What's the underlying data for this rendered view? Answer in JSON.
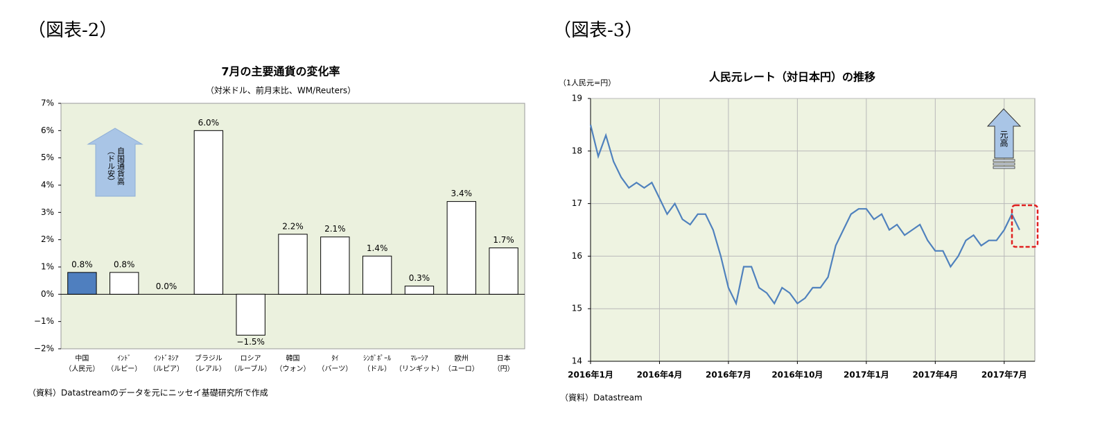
{
  "chart_data": [
    {
      "type": "bar",
      "figure_label": "（図表-2）",
      "title": "7月の主要通貨の変化率",
      "subtitle": "（対米ドル、前月末比、WM/Reuters）",
      "categories": [
        [
          "中国",
          "（人民元）"
        ],
        [
          "ｲﾝﾄﾞ",
          "（ルピー）"
        ],
        [
          "ｲﾝﾄﾞﾈｼｱ",
          "（ルピア）"
        ],
        [
          "ブラジル",
          "（レアル）"
        ],
        [
          "ロシア",
          "（ルーブル）"
        ],
        [
          "韓国",
          "（ウォン）"
        ],
        [
          "ﾀｲ",
          "（バーツ）"
        ],
        [
          "ｼﾝｶﾞﾎﾟｰﾙ",
          "（ドル）"
        ],
        [
          "ﾏﾚｰｼｱ",
          "（リンギット）"
        ],
        [
          "欧州",
          "（ユーロ）"
        ],
        [
          "日本",
          "（円）"
        ]
      ],
      "values": [
        0.8,
        0.8,
        0.0,
        6.0,
        -1.5,
        2.2,
        2.1,
        1.4,
        0.3,
        3.4,
        1.7
      ],
      "value_labels": [
        "0.8%",
        "0.8%",
        "0.0%",
        "6.0%",
        "−1.5%",
        "2.2%",
        "2.1%",
        "1.4%",
        "0.3%",
        "3.4%",
        "1.7%"
      ],
      "colors": [
        "#4f7fbf",
        "#ffffff",
        "#ffffff",
        "#ffffff",
        "#ffffff",
        "#ffffff",
        "#ffffff",
        "#ffffff",
        "#ffffff",
        "#ffffff",
        "#ffffff"
      ],
      "ylim": [
        -2,
        7
      ],
      "yticks": [
        {
          "value": -2,
          "label": "−2%"
        },
        {
          "value": -1,
          "label": "−1%"
        },
        {
          "value": 0,
          "label": "0%"
        },
        {
          "value": 1,
          "label": "1%"
        },
        {
          "value": 2,
          "label": "2%"
        },
        {
          "value": 3,
          "label": "3%"
        },
        {
          "value": 4,
          "label": "4%"
        },
        {
          "value": 5,
          "label": "5%"
        },
        {
          "value": 6,
          "label": "6%"
        },
        {
          "value": 7,
          "label": "7%"
        }
      ],
      "grid": false,
      "annotation": [
        "自国通貨高",
        "（ドル安）"
      ],
      "source": "（資料）Datastreamのデータを元にニッセイ基礎研究所で作成"
    },
    {
      "type": "line",
      "figure_label": "（図表-3）",
      "title": "人民元レート（対日本円）の推移",
      "ylabel": "（1人民元=円）",
      "x": [
        "2016-01",
        "2016-01",
        "2016-01",
        "2016-02",
        "2016-02",
        "2016-02",
        "2016-03",
        "2016-03",
        "2016-03",
        "2016-04",
        "2016-04",
        "2016-04",
        "2016-05",
        "2016-05",
        "2016-05",
        "2016-06",
        "2016-06",
        "2016-06",
        "2016-07",
        "2016-07",
        "2016-07",
        "2016-08",
        "2016-08",
        "2016-08",
        "2016-09",
        "2016-09",
        "2016-09",
        "2016-10",
        "2016-10",
        "2016-10",
        "2016-11",
        "2016-11",
        "2016-11",
        "2016-12",
        "2016-12",
        "2016-12",
        "2017-01",
        "2017-01",
        "2017-01",
        "2017-02",
        "2017-02",
        "2017-02",
        "2017-03",
        "2017-03",
        "2017-03",
        "2017-04",
        "2017-04",
        "2017-04",
        "2017-05",
        "2017-05",
        "2017-05",
        "2017-06",
        "2017-06",
        "2017-06",
        "2017-07",
        "2017-07",
        "2017-07"
      ],
      "values": [
        18.5,
        17.9,
        18.3,
        17.8,
        17.5,
        17.3,
        17.4,
        17.3,
        17.4,
        17.1,
        16.8,
        17.0,
        16.7,
        16.6,
        16.8,
        16.8,
        16.5,
        16.0,
        15.4,
        15.1,
        15.8,
        15.8,
        15.4,
        15.3,
        15.1,
        15.4,
        15.3,
        15.1,
        15.2,
        15.4,
        15.4,
        15.6,
        16.2,
        16.5,
        16.8,
        16.9,
        16.9,
        16.7,
        16.8,
        16.5,
        16.6,
        16.4,
        16.5,
        16.6,
        16.3,
        16.1,
        16.1,
        15.8,
        16.0,
        16.3,
        16.4,
        16.2,
        16.3,
        16.3,
        16.5,
        16.8,
        16.5
      ],
      "color": "#4f81bd",
      "ylim": [
        14,
        19
      ],
      "yticks": [
        14,
        15,
        16,
        17,
        18,
        19
      ],
      "xticks": [
        {
          "value": "2016-01",
          "label": "2016年1月"
        },
        {
          "value": "2016-04",
          "label": "2016年4月"
        },
        {
          "value": "2016-07",
          "label": "2016年7月"
        },
        {
          "value": "2016-10",
          "label": "2016年10月"
        },
        {
          "value": "2017-01",
          "label": "2017年1月"
        },
        {
          "value": "2017-04",
          "label": "2017年4月"
        },
        {
          "value": "2017-07",
          "label": "2017年7月"
        }
      ],
      "grid": true,
      "annotation": "元高",
      "source": "（資料）Datastream"
    }
  ]
}
